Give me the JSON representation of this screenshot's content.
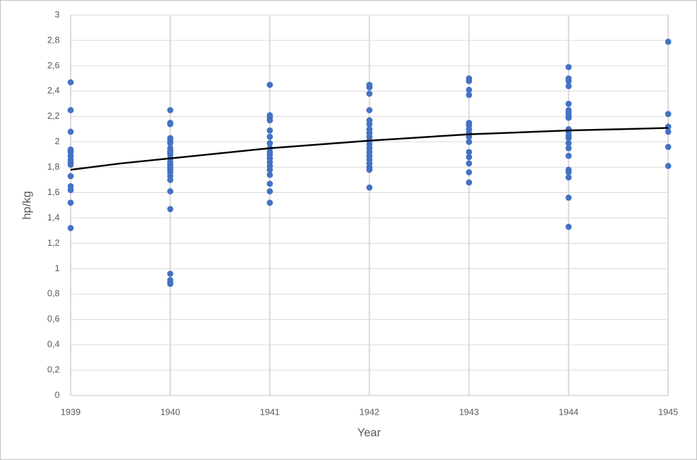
{
  "chart_data": {
    "type": "scatter",
    "x_label": "Year",
    "y_label": "hp/kg",
    "xlim": [
      1939,
      1945
    ],
    "xticks": [
      1939,
      1940,
      1941,
      1942,
      1943,
      1944,
      1945
    ],
    "ylim": [
      0,
      3
    ],
    "yticks": [
      0,
      {
        "value": 0.2,
        "label": "0,2"
      },
      {
        "value": 0.4,
        "label": "0,4"
      },
      {
        "value": 0.6,
        "label": "0,6"
      },
      {
        "value": 0.8,
        "label": "0,8"
      },
      1,
      {
        "value": 1.2,
        "label": "1,2"
      },
      {
        "value": 1.4,
        "label": "1,4"
      },
      {
        "value": 1.6,
        "label": "1,6"
      },
      {
        "value": 1.8,
        "label": "1,8"
      },
      2,
      {
        "value": 2.2,
        "label": "2,2"
      },
      {
        "value": 2.4,
        "label": "2,4"
      },
      {
        "value": 2.6,
        "label": "2,6"
      },
      {
        "value": 2.8,
        "label": "2,8"
      },
      3
    ],
    "grid": true,
    "series": [
      {
        "color": "#4472c4",
        "x": [
          1939,
          1939,
          1939,
          1939,
          1939,
          1939,
          1939,
          1939,
          1939,
          1939,
          1939,
          1939,
          1939,
          1939,
          1939,
          1940,
          1940,
          1940,
          1940,
          1940,
          1940,
          1940,
          1940,
          1940,
          1940,
          1940,
          1940,
          1940,
          1940,
          1940,
          1940,
          1940,
          1940,
          1940,
          1940,
          1940,
          1940,
          1940,
          1940,
          1941,
          1941,
          1941,
          1941,
          1941,
          1941,
          1941,
          1941,
          1941,
          1941,
          1941,
          1941,
          1941,
          1941,
          1941,
          1941,
          1941,
          1941,
          1942,
          1942,
          1942,
          1942,
          1942,
          1942,
          1942,
          1942,
          1942,
          1942,
          1942,
          1942,
          1942,
          1942,
          1942,
          1942,
          1942,
          1942,
          1942,
          1943,
          1943,
          1943,
          1943,
          1943,
          1943,
          1943,
          1943,
          1943,
          1943,
          1943,
          1943,
          1943,
          1943,
          1943,
          1944,
          1944,
          1944,
          1944,
          1944,
          1944,
          1944,
          1944,
          1944,
          1944,
          1944,
          1944,
          1944,
          1944,
          1944,
          1944,
          1944,
          1944,
          1944,
          1944,
          1944,
          1945,
          1945,
          1945,
          1945,
          1945,
          1945
        ],
        "values": [
          2.47,
          2.25,
          2.08,
          1.94,
          1.93,
          1.92,
          1.89,
          1.86,
          1.84,
          1.82,
          1.73,
          1.65,
          1.62,
          1.52,
          1.32,
          2.25,
          2.15,
          2.14,
          2.03,
          2.01,
          1.99,
          1.95,
          1.93,
          1.92,
          1.9,
          1.87,
          1.84,
          1.82,
          1.8,
          1.78,
          1.76,
          1.73,
          1.7,
          1.61,
          1.47,
          0.96,
          0.91,
          0.89,
          0.88,
          2.45,
          2.21,
          2.19,
          2.17,
          2.09,
          2.04,
          1.99,
          1.95,
          1.92,
          1.9,
          1.87,
          1.84,
          1.81,
          1.78,
          1.74,
          1.67,
          1.61,
          1.52,
          2.45,
          2.43,
          2.38,
          2.25,
          2.17,
          2.14,
          2.1,
          2.07,
          2.04,
          2.01,
          1.98,
          1.95,
          1.92,
          1.89,
          1.86,
          1.83,
          1.8,
          1.78,
          1.64,
          2.5,
          2.48,
          2.41,
          2.37,
          2.15,
          2.13,
          2.1,
          2.07,
          2.04,
          2.0,
          1.92,
          1.88,
          1.83,
          1.76,
          1.68,
          2.59,
          2.5,
          2.48,
          2.44,
          2.3,
          2.25,
          2.23,
          2.21,
          2.19,
          2.1,
          2.08,
          2.05,
          2.03,
          1.99,
          1.95,
          1.89,
          1.78,
          1.76,
          1.72,
          1.56,
          1.33,
          2.79,
          2.22,
          2.12,
          2.08,
          1.96,
          1.81
        ]
      }
    ],
    "trendline": {
      "color": "#000000",
      "x": [
        1939,
        1939.5,
        1940,
        1940.5,
        1941,
        1941.5,
        1942,
        1942.5,
        1943,
        1943.5,
        1944,
        1944.5,
        1945
      ],
      "values": [
        1.78,
        1.83,
        1.87,
        1.91,
        1.95,
        1.98,
        2.01,
        2.035,
        2.06,
        2.075,
        2.09,
        2.1,
        2.11
      ]
    }
  }
}
